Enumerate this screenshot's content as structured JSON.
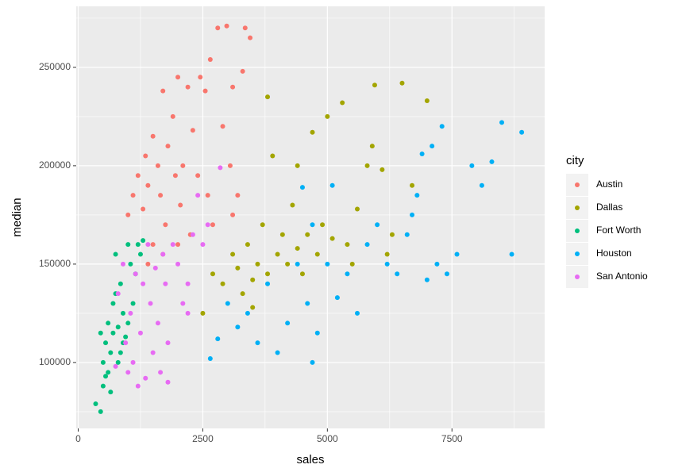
{
  "chart_data": {
    "type": "scatter",
    "x_label": "sales",
    "y_label": "median",
    "legend_title": "city",
    "xlim": [
      -40,
      9360
    ],
    "ylim": [
      66500,
      281000
    ],
    "xticks": [
      0,
      2500,
      5000,
      7500
    ],
    "yticks": [
      100000,
      150000,
      200000,
      250000
    ],
    "grid": true,
    "legend_position": "right",
    "series": [
      {
        "name": "Austin",
        "color": "#F8766D",
        "x": [
          1000,
          1100,
          1200,
          1300,
          1350,
          1400,
          1500,
          1600,
          1650,
          1700,
          1750,
          1800,
          1900,
          1950,
          2000,
          2050,
          2100,
          2200,
          2250,
          2300,
          2400,
          2450,
          2550,
          2600,
          2650,
          2700,
          2800,
          2900,
          2980,
          3050,
          3100,
          3200,
          3300,
          3350,
          3450,
          1500,
          1700,
          2000,
          1400,
          3100
        ],
        "values": [
          175000,
          185000,
          195000,
          178000,
          205000,
          190000,
          215000,
          200000,
          185000,
          238000,
          170000,
          210000,
          225000,
          195000,
          245000,
          180000,
          200000,
          240000,
          165000,
          218000,
          195000,
          245000,
          238000,
          185000,
          254000,
          170000,
          270000,
          220000,
          271000,
          200000,
          240000,
          185000,
          248000,
          270000,
          265000,
          160000,
          155000,
          160000,
          150000,
          175000
        ]
      },
      {
        "name": "Dallas",
        "color": "#A3A500",
        "x": [
          2500,
          2700,
          2900,
          3100,
          3200,
          3300,
          3400,
          3500,
          3600,
          3700,
          3800,
          3800,
          3900,
          4000,
          4100,
          4200,
          4300,
          4400,
          4500,
          4600,
          4700,
          4800,
          4900,
          5000,
          5100,
          5300,
          5400,
          5600,
          5800,
          5900,
          5950,
          6100,
          6300,
          6500,
          6700,
          7000,
          5500,
          3500,
          4400,
          6200
        ],
        "values": [
          125000,
          145000,
          140000,
          155000,
          148000,
          135000,
          160000,
          142000,
          150000,
          170000,
          145000,
          235000,
          205000,
          155000,
          165000,
          150000,
          180000,
          158000,
          145000,
          165000,
          217000,
          155000,
          170000,
          225000,
          163000,
          232000,
          160000,
          178000,
          200000,
          210000,
          241000,
          198000,
          165000,
          242000,
          190000,
          233000,
          150000,
          128000,
          200000,
          155000
        ]
      },
      {
        "name": "Fort Worth",
        "color": "#00BF7D",
        "x": [
          350,
          450,
          500,
          500,
          550,
          600,
          600,
          650,
          700,
          700,
          750,
          800,
          800,
          850,
          900,
          950,
          1000,
          1050,
          1100,
          1150,
          1200,
          1250,
          1300,
          650,
          900,
          550,
          1000,
          750,
          850,
          450
        ],
        "values": [
          79000,
          75000,
          88000,
          100000,
          110000,
          95000,
          120000,
          105000,
          130000,
          115000,
          155000,
          100000,
          118000,
          140000,
          125000,
          113000,
          120000,
          150000,
          130000,
          145000,
          160000,
          155000,
          162000,
          85000,
          110000,
          93000,
          160000,
          135000,
          105000,
          115000
        ]
      },
      {
        "name": "Houston",
        "color": "#00B0F6",
        "x": [
          2650,
          2800,
          3000,
          3200,
          3400,
          3600,
          3800,
          4000,
          4200,
          4400,
          4500,
          4600,
          4700,
          4800,
          5000,
          5100,
          5200,
          5400,
          5600,
          5800,
          6000,
          6200,
          6400,
          6600,
          6700,
          6900,
          7100,
          7200,
          7300,
          7400,
          7600,
          7900,
          8100,
          8300,
          8500,
          8900,
          8700,
          6800,
          7000,
          4700
        ],
        "values": [
          102000,
          112000,
          130000,
          118000,
          125000,
          110000,
          140000,
          105000,
          120000,
          150000,
          189000,
          130000,
          100000,
          115000,
          150000,
          190000,
          133000,
          145000,
          125000,
          160000,
          170000,
          150000,
          145000,
          165000,
          175000,
          206000,
          210000,
          150000,
          220000,
          145000,
          155000,
          200000,
          190000,
          202000,
          222000,
          217000,
          155000,
          185000,
          142000,
          170000
        ]
      },
      {
        "name": "San Antonio",
        "color": "#E76BF3",
        "x": [
          750,
          800,
          900,
          950,
          1000,
          1050,
          1100,
          1150,
          1200,
          1250,
          1300,
          1350,
          1400,
          1450,
          1500,
          1550,
          1600,
          1650,
          1700,
          1750,
          1800,
          1900,
          2000,
          2100,
          2200,
          2300,
          2400,
          2500,
          2600,
          2850,
          1800,
          2200
        ],
        "values": [
          98000,
          135000,
          150000,
          110000,
          95000,
          125000,
          100000,
          145000,
          88000,
          115000,
          140000,
          92000,
          160000,
          130000,
          105000,
          148000,
          120000,
          95000,
          155000,
          140000,
          110000,
          160000,
          150000,
          130000,
          140000,
          165000,
          185000,
          160000,
          170000,
          199000,
          90000,
          125000
        ]
      }
    ]
  }
}
